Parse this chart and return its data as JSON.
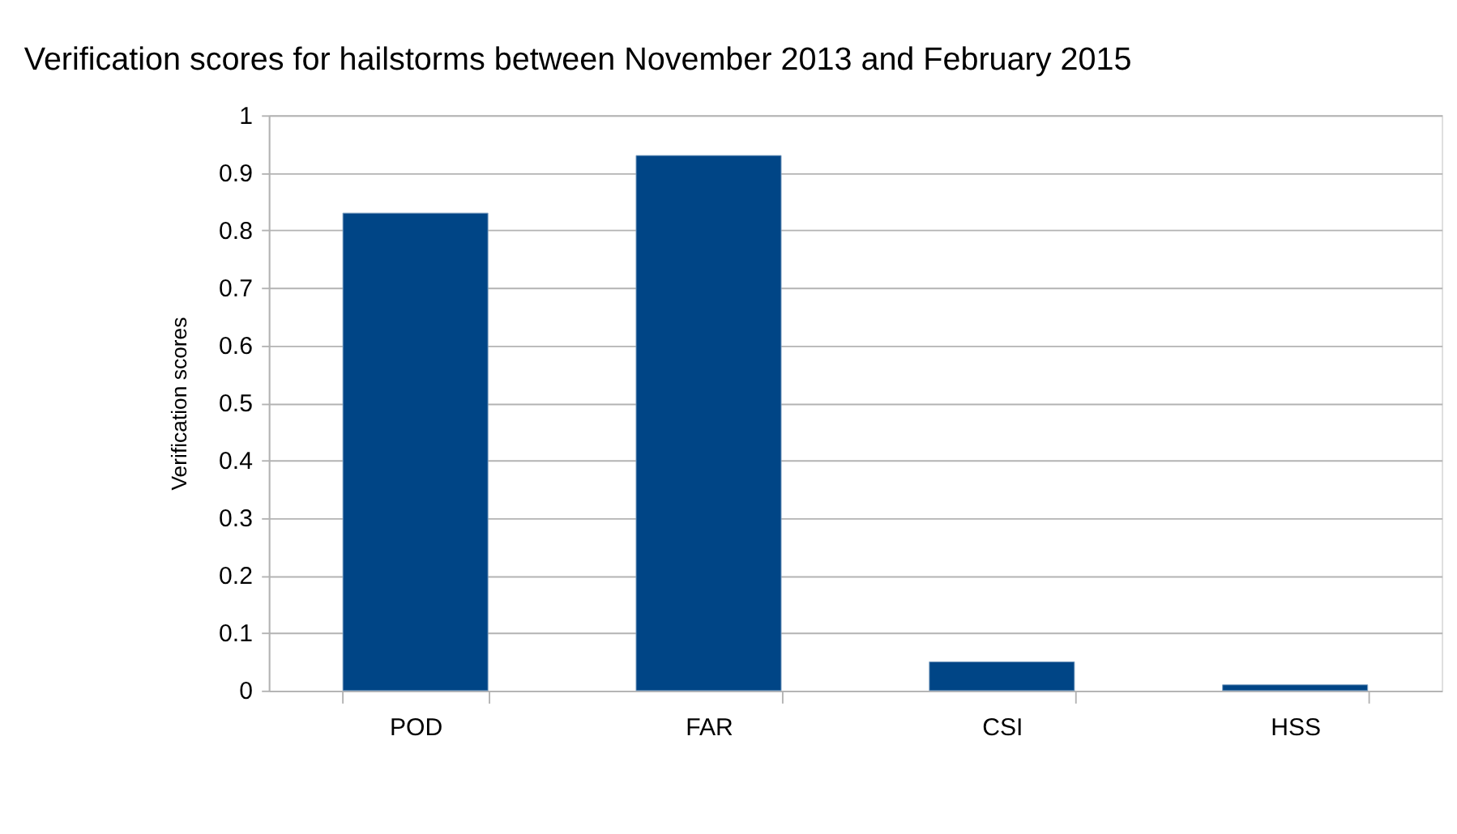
{
  "chart_data": {
    "type": "bar",
    "title": "Verification scores for hailstorms between November 2013 and February 2015",
    "ylabel": "Verification scores",
    "categories": [
      "POD",
      "FAR",
      "CSI",
      "HSS"
    ],
    "values": [
      0.83,
      0.93,
      0.05,
      0.01
    ],
    "color": "#004586",
    "ylim": [
      0,
      1
    ],
    "yticks": [
      0,
      0.1,
      0.2,
      0.3,
      0.4,
      0.5,
      0.6,
      0.7,
      0.8,
      0.9,
      1
    ],
    "grid": "y"
  }
}
